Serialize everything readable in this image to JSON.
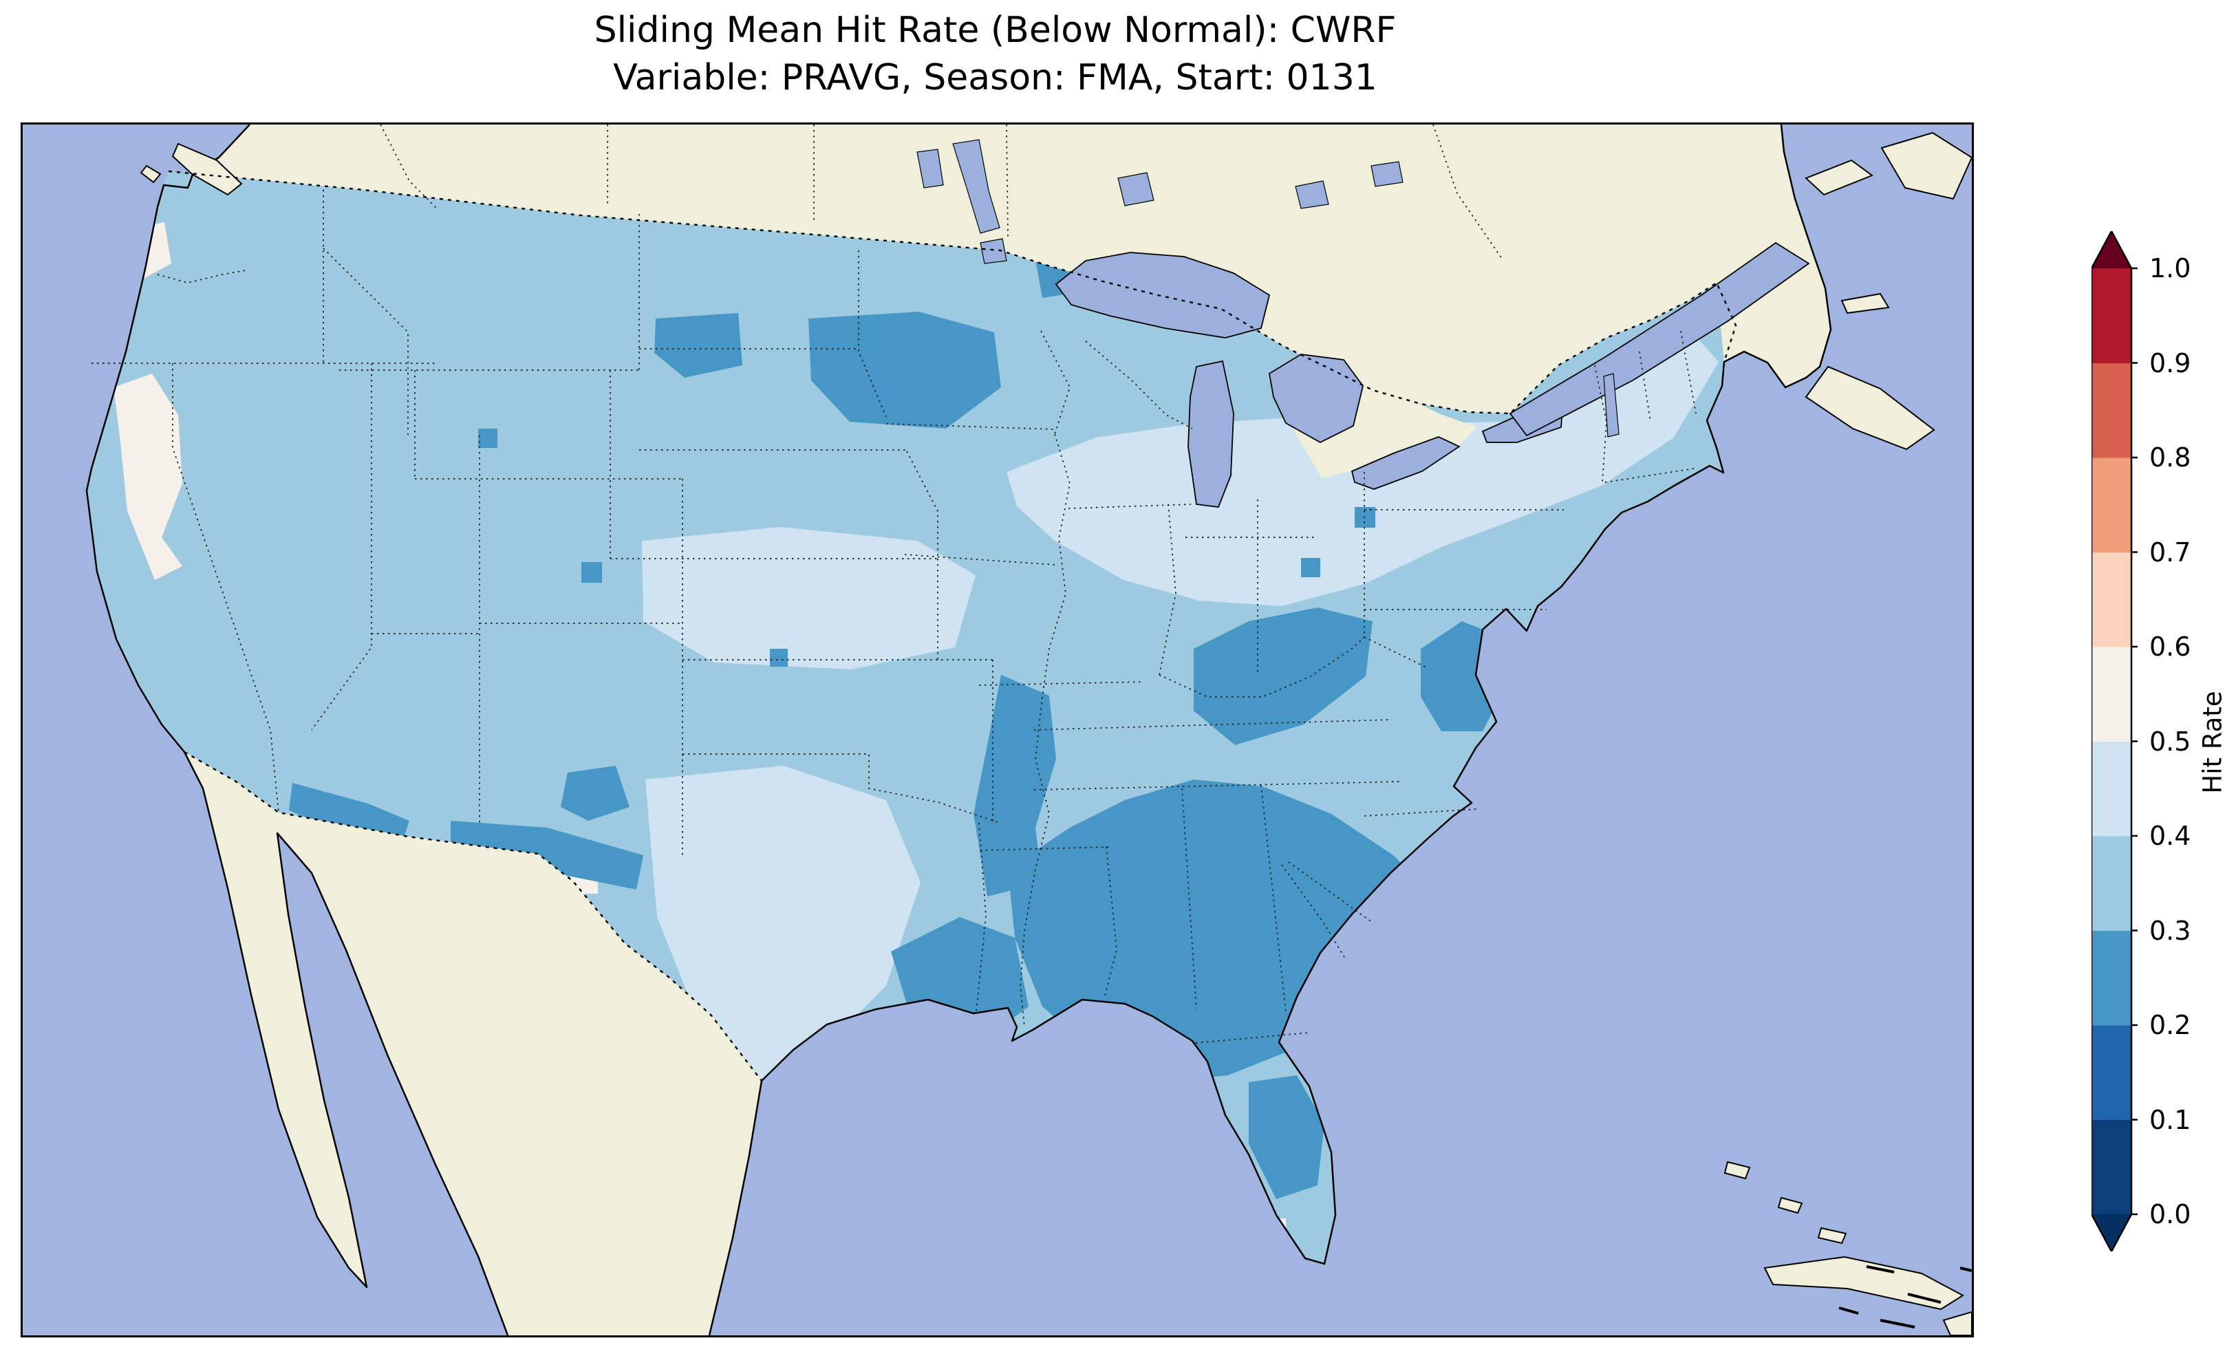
{
  "figure": {
    "title_line1": "Sliding Mean Hit Rate (Below Normal): CWRF",
    "title_line2": "Variable: PRAVG, Season: FMA, Start: 0131"
  },
  "map_colors": {
    "ocean": "#a2b4e0",
    "lake": "#9cb0dd",
    "land": "#efefdb",
    "coastline": "#000000"
  },
  "chart_data": {
    "type": "heatmap",
    "title": "Sliding Mean Hit Rate (Below Normal): CWRF",
    "subtitle": "Variable: PRAVG, Season: FMA, Start: 0131",
    "model": "CWRF",
    "variable": "PRAVG",
    "season": "FMA",
    "start_date": "0131",
    "metric": "Hit Rate",
    "forecast_category": "Below Normal",
    "region": "Contiguous United States",
    "colorbar": {
      "label": "Hit Rate",
      "orientation": "vertical",
      "range": [
        0.0,
        1.0
      ],
      "extend": "both",
      "tick_labels": [
        "1.0",
        "0.9",
        "0.8",
        "0.7",
        "0.6",
        "0.5",
        "0.4",
        "0.3",
        "0.2",
        "0.1",
        "0.0"
      ],
      "bin_edges": [
        0.0,
        0.1,
        0.2,
        0.3,
        0.4,
        0.5,
        0.6,
        0.7,
        0.8,
        0.9,
        1.0
      ],
      "bin_colors": [
        "#0c3e78",
        "#2166ac",
        "#4697c6",
        "#9ecae1",
        "#cfe3f0",
        "#f5f0e9",
        "#fbd2bb",
        "#f09c79",
        "#d6604d",
        "#b2182b"
      ],
      "under_color": "#053061",
      "over_color": "#67001f"
    },
    "value_summary": [
      {
        "region": "Most of the western and central U.S.",
        "hit_rate_bin": "0.3-0.4"
      },
      {
        "region": "Upper Midwest through Northeast (pale band)",
        "hit_rate_bin": "0.4-0.5"
      },
      {
        "region": "Central Plains (Kansas-Nebraska) and much of Texas",
        "hit_rate_bin": "0.4-0.5"
      },
      {
        "region": "Sierra Nevada / western Nevada",
        "hit_rate_bin": "0.5-0.6"
      },
      {
        "region": "Northwest Washington (Olympic Peninsula)",
        "hit_rate_bin": "0.5-0.6"
      },
      {
        "region": "Small patch, southeastern New Mexico",
        "hit_rate_bin": "0.5-0.6"
      },
      {
        "region": "Eastern North Dakota and west-central Minnesota",
        "hit_rate_bin": "0.2-0.3"
      },
      {
        "region": "Ozark region (Missouri-Arkansas-northeast Texas)",
        "hit_rate_bin": "0.2-0.3"
      },
      {
        "region": "Ohio Valley (Kentucky, southern Indiana and Ohio)",
        "hit_rate_bin": "0.2-0.3"
      },
      {
        "region": "Deep South / Southeast (east Texas, Louisiana, Mississippi, Alabama, Georgia, Carolinas)",
        "hit_rate_bin": "0.2-0.3"
      },
      {
        "region": "Central Florida peninsula",
        "hit_rate_bin": "0.2-0.3"
      },
      {
        "region": "Chesapeake Bay region (Virginia-Maryland)",
        "hit_rate_bin": "0.2-0.3"
      },
      {
        "region": "Southern New Mexico / far west Texas border",
        "hit_rate_bin": "0.2-0.3"
      },
      {
        "region": "Southwestern Arizona border",
        "hit_rate_bin": "0.2-0.3"
      }
    ]
  }
}
